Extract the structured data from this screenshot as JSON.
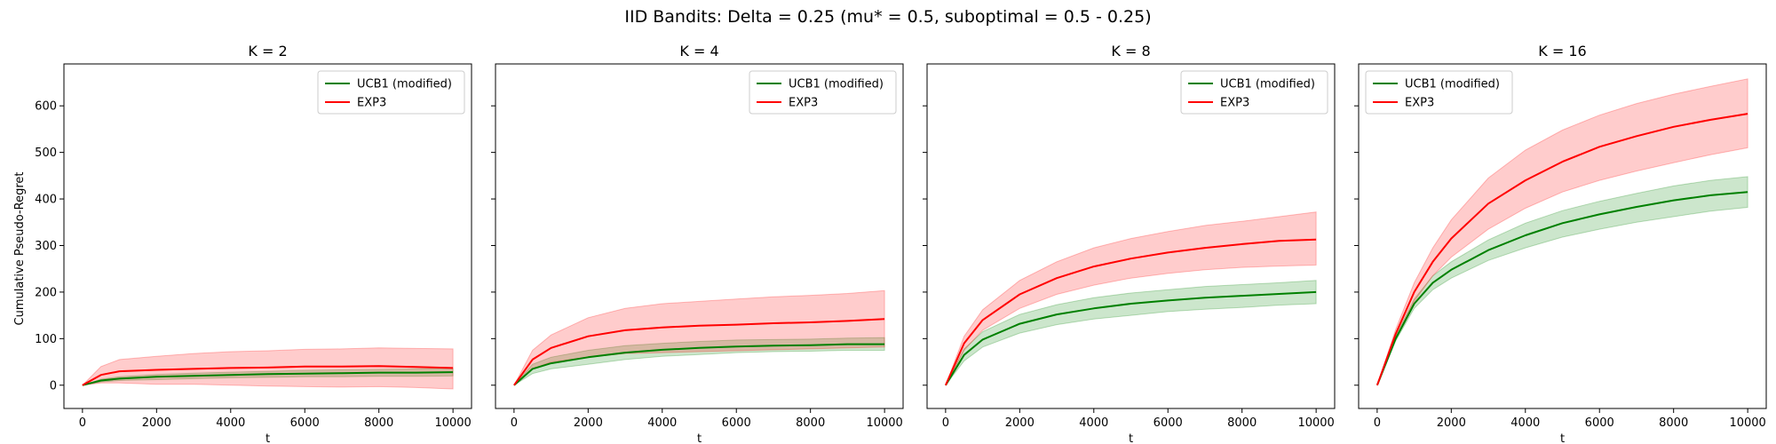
{
  "figure": {
    "title": "IID Bandits: Delta = 0.25 (mu* = 0.5, suboptimal = 0.5 - 0.25)",
    "ylabel": "Cumulative Pseudo-Regret"
  },
  "chart_data": [
    {
      "type": "line",
      "title": "K = 2",
      "xlabel": "t",
      "ylabel": "Cumulative Pseudo-Regret",
      "xlim": [
        -500,
        10500
      ],
      "ylim": [
        -50,
        690
      ],
      "xticks": [
        0,
        2000,
        4000,
        6000,
        8000,
        10000
      ],
      "yticks": [
        0,
        100,
        200,
        300,
        400,
        500,
        600
      ],
      "legend": "top-right",
      "grid": false,
      "series": [
        {
          "name": "UCB1 (modified)",
          "color": "#008000",
          "x": [
            0,
            500,
            1000,
            2000,
            3000,
            4000,
            5000,
            6000,
            7000,
            8000,
            9000,
            10000
          ],
          "mean": [
            0,
            10,
            14,
            18,
            20,
            22,
            24,
            25,
            26,
            27,
            27,
            28
          ],
          "lower": [
            0,
            7,
            10,
            12,
            14,
            16,
            17,
            18,
            18,
            19,
            19,
            20
          ],
          "upper": [
            0,
            13,
            18,
            23,
            26,
            28,
            30,
            32,
            33,
            34,
            35,
            36
          ]
        },
        {
          "name": "EXP3",
          "color": "#ff0000",
          "x": [
            0,
            500,
            1000,
            2000,
            3000,
            4000,
            5000,
            6000,
            7000,
            8000,
            9000,
            10000
          ],
          "mean": [
            0,
            22,
            30,
            33,
            35,
            37,
            38,
            40,
            40,
            41,
            39,
            37
          ],
          "lower": [
            0,
            5,
            5,
            2,
            2,
            0,
            -2,
            -3,
            -4,
            -3,
            -5,
            -8
          ],
          "upper": [
            0,
            40,
            55,
            62,
            68,
            72,
            74,
            77,
            78,
            80,
            79,
            78
          ]
        }
      ]
    },
    {
      "type": "line",
      "title": "K = 4",
      "xlabel": "t",
      "xlim": [
        -500,
        10500
      ],
      "ylim": [
        -50,
        690
      ],
      "xticks": [
        0,
        2000,
        4000,
        6000,
        8000,
        10000
      ],
      "yticks": [
        0,
        100,
        200,
        300,
        400,
        500,
        600
      ],
      "legend": "top-right",
      "grid": false,
      "series": [
        {
          "name": "UCB1 (modified)",
          "color": "#008000",
          "x": [
            0,
            500,
            1000,
            2000,
            3000,
            4000,
            5000,
            6000,
            7000,
            8000,
            9000,
            10000
          ],
          "mean": [
            0,
            35,
            47,
            60,
            70,
            76,
            80,
            83,
            85,
            86,
            88,
            88
          ],
          "lower": [
            0,
            25,
            35,
            45,
            55,
            62,
            66,
            70,
            72,
            73,
            75,
            75
          ],
          "upper": [
            0,
            45,
            60,
            75,
            85,
            90,
            94,
            97,
            98,
            99,
            101,
            102
          ]
        },
        {
          "name": "EXP3",
          "color": "#ff0000",
          "x": [
            0,
            500,
            1000,
            2000,
            3000,
            4000,
            5000,
            6000,
            7000,
            8000,
            9000,
            10000
          ],
          "mean": [
            0,
            55,
            80,
            105,
            118,
            124,
            128,
            130,
            133,
            135,
            138,
            142
          ],
          "lower": [
            0,
            35,
            50,
            60,
            68,
            70,
            72,
            74,
            76,
            78,
            80,
            82
          ],
          "upper": [
            0,
            75,
            108,
            145,
            165,
            175,
            180,
            185,
            190,
            193,
            197,
            203
          ]
        }
      ]
    },
    {
      "type": "line",
      "title": "K = 8",
      "xlabel": "t",
      "xlim": [
        -500,
        10500
      ],
      "ylim": [
        -50,
        690
      ],
      "xticks": [
        0,
        2000,
        4000,
        6000,
        8000,
        10000
      ],
      "yticks": [
        0,
        100,
        200,
        300,
        400,
        500,
        600
      ],
      "legend": "top-right",
      "grid": false,
      "series": [
        {
          "name": "UCB1 (modified)",
          "color": "#008000",
          "x": [
            0,
            500,
            1000,
            2000,
            3000,
            4000,
            5000,
            6000,
            7000,
            8000,
            9000,
            10000
          ],
          "mean": [
            0,
            65,
            98,
            132,
            152,
            165,
            175,
            182,
            188,
            192,
            196,
            200
          ],
          "lower": [
            0,
            52,
            82,
            112,
            130,
            142,
            150,
            158,
            163,
            167,
            172,
            175
          ],
          "upper": [
            0,
            78,
            115,
            152,
            173,
            188,
            198,
            205,
            212,
            216,
            220,
            225
          ]
        },
        {
          "name": "EXP3",
          "color": "#ff0000",
          "x": [
            0,
            500,
            1000,
            2000,
            3000,
            4000,
            5000,
            6000,
            7000,
            8000,
            9000,
            10000
          ],
          "mean": [
            0,
            90,
            140,
            195,
            230,
            255,
            272,
            285,
            295,
            303,
            310,
            313
          ],
          "lower": [
            0,
            75,
            118,
            165,
            195,
            215,
            230,
            240,
            248,
            253,
            256,
            258
          ],
          "upper": [
            0,
            105,
            162,
            225,
            265,
            295,
            315,
            330,
            343,
            352,
            362,
            372
          ]
        }
      ]
    },
    {
      "type": "line",
      "title": "K = 16",
      "xlabel": "t",
      "xlim": [
        -500,
        10500
      ],
      "ylim": [
        -50,
        690
      ],
      "xticks": [
        0,
        2000,
        4000,
        6000,
        8000,
        10000
      ],
      "yticks": [
        0,
        100,
        200,
        300,
        400,
        500,
        600
      ],
      "legend": "top-left",
      "grid": false,
      "series": [
        {
          "name": "UCB1 (modified)",
          "color": "#008000",
          "x": [
            0,
            500,
            1000,
            1500,
            2000,
            3000,
            4000,
            5000,
            6000,
            7000,
            8000,
            9000,
            10000
          ],
          "mean": [
            0,
            100,
            175,
            220,
            248,
            290,
            322,
            348,
            367,
            383,
            397,
            408,
            415
          ],
          "lower": [
            0,
            95,
            165,
            205,
            230,
            268,
            295,
            318,
            335,
            350,
            362,
            374,
            382
          ],
          "upper": [
            0,
            106,
            185,
            235,
            265,
            312,
            348,
            375,
            395,
            412,
            428,
            440,
            448
          ]
        },
        {
          "name": "EXP3",
          "color": "#ff0000",
          "x": [
            0,
            500,
            1000,
            1500,
            2000,
            3000,
            4000,
            5000,
            6000,
            7000,
            8000,
            9000,
            10000
          ],
          "mean": [
            0,
            110,
            200,
            265,
            315,
            390,
            440,
            480,
            512,
            535,
            555,
            570,
            583
          ],
          "lower": [
            0,
            100,
            180,
            235,
            275,
            335,
            380,
            415,
            440,
            460,
            478,
            495,
            510
          ],
          "upper": [
            0,
            120,
            220,
            295,
            355,
            445,
            505,
            548,
            580,
            605,
            625,
            642,
            658
          ]
        }
      ]
    }
  ]
}
